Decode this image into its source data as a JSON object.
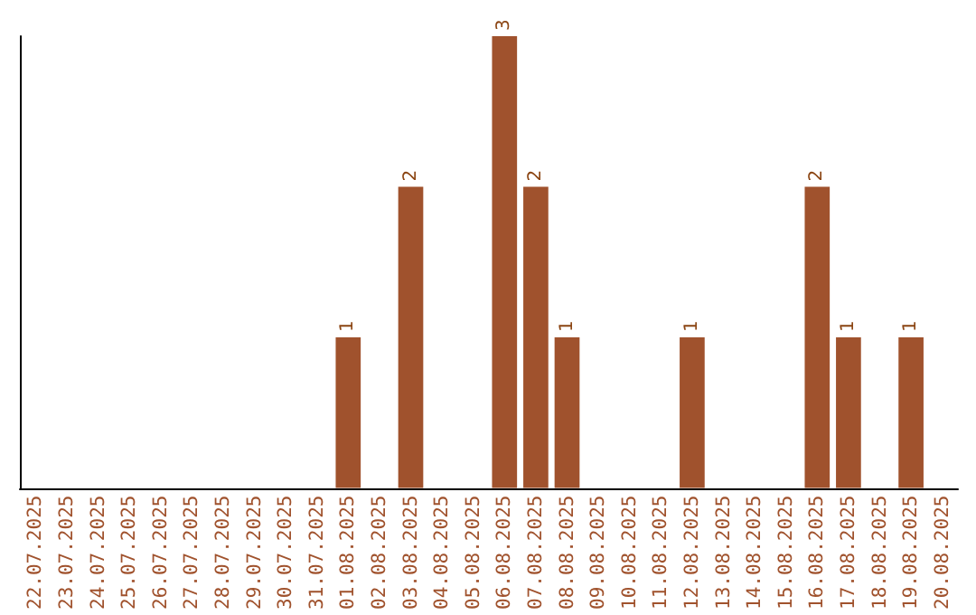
{
  "chart_data": {
    "type": "bar",
    "categories": [
      "22.07.2025",
      "23.07.2025",
      "24.07.2025",
      "25.07.2025",
      "26.07.2025",
      "27.07.2025",
      "28.07.2025",
      "29.07.2025",
      "30.07.2025",
      "31.07.2025",
      "01.08.2025",
      "02.08.2025",
      "03.08.2025",
      "04.08.2025",
      "05.08.2025",
      "06.08.2025",
      "07.08.2025",
      "08.08.2025",
      "09.08.2025",
      "10.08.2025",
      "11.08.2025",
      "12.08.2025",
      "13.08.2025",
      "14.08.2025",
      "15.08.2025",
      "16.08.2025",
      "17.08.2025",
      "18.08.2025",
      "19.08.2025",
      "20.08.2025"
    ],
    "values": [
      0,
      0,
      0,
      0,
      0,
      0,
      0,
      0,
      0,
      0,
      1,
      0,
      2,
      0,
      0,
      3,
      2,
      1,
      0,
      0,
      0,
      1,
      0,
      0,
      0,
      2,
      1,
      0,
      1,
      0
    ],
    "value_labels": [
      null,
      null,
      null,
      null,
      null,
      null,
      null,
      null,
      null,
      null,
      "1",
      null,
      "2",
      null,
      null,
      "3",
      "2",
      "1",
      null,
      null,
      null,
      "1",
      null,
      null,
      null,
      "2",
      "1",
      null,
      "1",
      null
    ],
    "color": "#a0522d",
    "grid": false
  }
}
